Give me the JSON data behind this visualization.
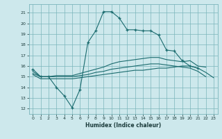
{
  "xlabel": "Humidex (Indice chaleur)",
  "bg_color": "#cde8ec",
  "grid_color": "#7ab5bb",
  "line_color": "#1a6b6e",
  "xlim": [
    -0.5,
    23.5
  ],
  "ylim": [
    11.5,
    21.8
  ],
  "yticks": [
    12,
    13,
    14,
    15,
    16,
    17,
    18,
    19,
    20,
    21
  ],
  "xticks": [
    0,
    1,
    2,
    3,
    4,
    5,
    6,
    7,
    8,
    9,
    10,
    11,
    12,
    13,
    14,
    15,
    16,
    17,
    18,
    19,
    20,
    21,
    22,
    23
  ],
  "line1_x": [
    0,
    1,
    2,
    3,
    4,
    5,
    6,
    7,
    8,
    9,
    10,
    11,
    12,
    13,
    14,
    15,
    16,
    17,
    18,
    19,
    20,
    21
  ],
  "line1_y": [
    15.7,
    15.0,
    15.0,
    14.0,
    13.2,
    12.1,
    13.8,
    18.2,
    19.3,
    21.1,
    21.1,
    20.5,
    19.4,
    19.4,
    19.3,
    19.3,
    18.9,
    17.5,
    17.4,
    16.5,
    16.0,
    15.8
  ],
  "line2_x": [
    0,
    1,
    2,
    3,
    4,
    5,
    6,
    7,
    8,
    9,
    10,
    11,
    12,
    13,
    14,
    15,
    16,
    17,
    18,
    19,
    20,
    21,
    22
  ],
  "line2_y": [
    15.5,
    15.0,
    15.0,
    15.1,
    15.1,
    15.1,
    15.3,
    15.5,
    15.7,
    15.9,
    16.2,
    16.4,
    16.5,
    16.6,
    16.7,
    16.8,
    16.8,
    16.6,
    16.5,
    16.4,
    16.5,
    16.0,
    15.9
  ],
  "line3_x": [
    0,
    1,
    2,
    3,
    4,
    5,
    6,
    7,
    8,
    9,
    10,
    11,
    12,
    13,
    14,
    15,
    16,
    17,
    18,
    19,
    20,
    21,
    22
  ],
  "line3_y": [
    15.3,
    15.0,
    15.0,
    15.0,
    15.0,
    15.0,
    15.1,
    15.2,
    15.4,
    15.5,
    15.7,
    15.8,
    15.9,
    16.0,
    16.1,
    16.2,
    16.2,
    16.1,
    16.0,
    15.9,
    15.8,
    15.5,
    15.0
  ],
  "line4_x": [
    0,
    1,
    2,
    3,
    4,
    5,
    6,
    7,
    8,
    9,
    10,
    11,
    12,
    13,
    14,
    15,
    16,
    17,
    18,
    19,
    20,
    21,
    22,
    23
  ],
  "line4_y": [
    15.2,
    14.8,
    14.8,
    14.8,
    14.8,
    14.8,
    14.9,
    15.0,
    15.1,
    15.2,
    15.3,
    15.4,
    15.5,
    15.6,
    15.6,
    15.7,
    15.8,
    15.8,
    15.9,
    16.0,
    16.0,
    15.8,
    15.4,
    14.9
  ]
}
